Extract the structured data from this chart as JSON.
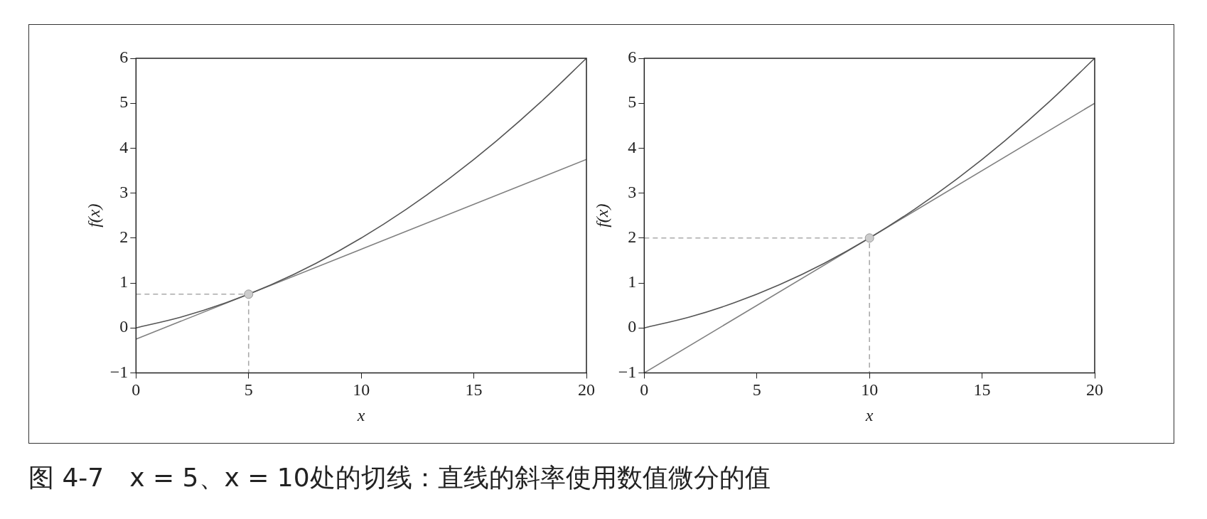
{
  "chart_data": [
    {
      "type": "line",
      "xlabel": "x",
      "ylabel": "f(x)",
      "xlim": [
        0,
        20
      ],
      "ylim": [
        -1,
        6
      ],
      "xticks": [
        0,
        5,
        10,
        15,
        20
      ],
      "yticks": [
        -1,
        0,
        1,
        2,
        3,
        4,
        5,
        6
      ],
      "grid": false,
      "annotations": [
        "图 4-7　x = 5、x = 10处的切线：直线的斜率使用数值微分的值"
      ],
      "series": [
        {
          "color": "#555555",
          "marker": "none",
          "line_style": "solid",
          "x": [
            0,
            2,
            4,
            6,
            8,
            10,
            12,
            14,
            16,
            18,
            20
          ],
          "values": [
            0,
            0.24,
            0.56,
            0.96,
            1.44,
            2,
            2.64,
            3.36,
            4.16,
            5.04,
            6
          ]
        },
        {
          "color": "#808080",
          "marker": "none",
          "line_style": "solid",
          "x": [
            0,
            20
          ],
          "values": [
            -0.25,
            3.75
          ]
        },
        {
          "color": "#aaaaaa",
          "marker": "none",
          "line_style": "dashed",
          "x": [
            0,
            5,
            5
          ],
          "values": [
            0.75,
            0.75,
            -1
          ]
        },
        {
          "type": "scatter",
          "color": "#cccccc",
          "marker": "circle",
          "x": [
            5
          ],
          "values": [
            0.75
          ]
        }
      ]
    },
    {
      "type": "line",
      "xlabel": "x",
      "ylabel": "f(x)",
      "xlim": [
        0,
        20
      ],
      "ylim": [
        -1,
        6
      ],
      "xticks": [
        0,
        5,
        10,
        15,
        20
      ],
      "yticks": [
        -1,
        0,
        1,
        2,
        3,
        4,
        5,
        6
      ],
      "grid": false,
      "series": [
        {
          "color": "#555555",
          "marker": "none",
          "line_style": "solid",
          "x": [
            0,
            2,
            4,
            6,
            8,
            10,
            12,
            14,
            16,
            18,
            20
          ],
          "values": [
            0,
            0.24,
            0.56,
            0.96,
            1.44,
            2,
            2.64,
            3.36,
            4.16,
            5.04,
            6
          ]
        },
        {
          "color": "#808080",
          "marker": "none",
          "line_style": "solid",
          "x": [
            0,
            20
          ],
          "values": [
            -1,
            5
          ]
        },
        {
          "color": "#aaaaaa",
          "marker": "none",
          "line_style": "dashed",
          "x": [
            0,
            10,
            10
          ],
          "values": [
            2,
            2,
            -1
          ]
        },
        {
          "type": "scatter",
          "color": "#cccccc",
          "marker": "circle",
          "x": [
            10
          ],
          "values": [
            2
          ]
        }
      ]
    }
  ]
}
